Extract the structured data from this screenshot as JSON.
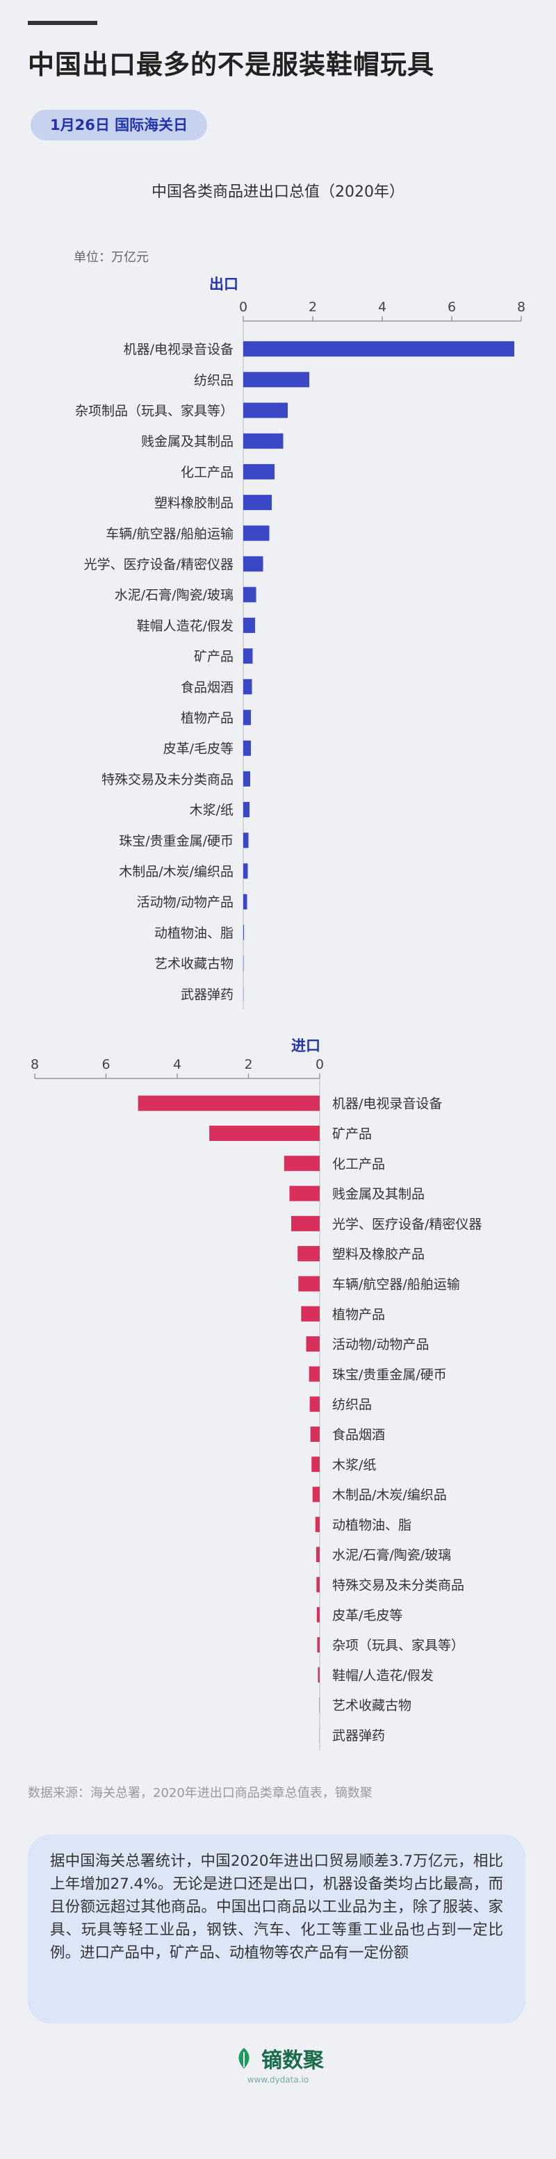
{
  "page": {
    "title": "中国出口最多的不是服装鞋帽玩具",
    "date_badge": "1月26日 国际海关日",
    "chart_title": "中国各类商品进出口总值（2020年）",
    "unit": "单位：万亿元",
    "source": "数据来源：海关总署，2020年进出口商品类章总值表，镝数聚",
    "summary": "据中国海关总署统计，中国2020年进出口贸易顺差3.7万亿元，相比上年增加27.4%。无论是进口还是出口，机器设备类均占比最高，而且份额远超过其他商品。中国出口商品以工业品为主，除了服装、家具、玩具等轻工业品，钢铁、汽车、化工等重工业品也占到一定比例。进口产品中，矿产品、动植物等农产品有一定份额",
    "brand_name": "镝数聚",
    "brand_url": "www.dydata.io"
  },
  "colors": {
    "export_bar": "#3a48c6",
    "import_bar": "#d82f5c",
    "brand": "#1b6b4a"
  },
  "chart_data": [
    {
      "type": "bar",
      "orientation": "horizontal",
      "title": "出口",
      "xlim": [
        0,
        8
      ],
      "ticks": [
        0,
        2,
        4,
        6,
        8
      ],
      "categories": [
        "机器/电视录音设备",
        "纺织品",
        "杂项制品（玩具、家具等）",
        "贱金属及其制品",
        "化工产品",
        "塑料橡胶制品",
        "车辆/航空器/船舶运输",
        "光学、医疗设备/精密仪器",
        "水泥/石膏/陶瓷/玻璃",
        "鞋帽人造花/假发",
        "矿产品",
        "食品烟酒",
        "植物产品",
        "皮革/毛皮等",
        "特殊交易及未分类商品",
        "木浆/纸",
        "珠宝/贵重金属/硬币",
        "木制品/木炭/编织品",
        "活动物/动物产品",
        "动植物油、脂",
        "艺术收藏古物",
        "武器弹药"
      ],
      "values": [
        7.8,
        1.9,
        1.28,
        1.15,
        0.9,
        0.82,
        0.75,
        0.57,
        0.37,
        0.34,
        0.27,
        0.25,
        0.22,
        0.22,
        0.2,
        0.18,
        0.15,
        0.13,
        0.11,
        0.02,
        0.01,
        0.005
      ]
    },
    {
      "type": "bar",
      "orientation": "horizontal",
      "title": "进口",
      "xlim": [
        0,
        8
      ],
      "ticks": [
        8,
        6,
        4,
        2,
        0
      ],
      "reversed": true,
      "categories": [
        "机器/电视录音设备",
        "矿产品",
        "化工产品",
        "贱金属及其制品",
        "光学、医疗设备/精密仪器",
        "塑料及橡胶产品",
        "车辆/航空器/船舶运输",
        "植物产品",
        "活动物/动物产品",
        "珠宝/贵重金属/硬币",
        "纺织品",
        "食品烟酒",
        "木浆/纸",
        "木制品/木炭/编织品",
        "动植物油、脂",
        "水泥/石膏/陶瓷/玻璃",
        "特殊交易及未分类商品",
        "皮革/毛皮等",
        "杂项（玩具、家具等）",
        "鞋帽/人造花/假发",
        "艺术收藏古物",
        "武器弹药"
      ],
      "values": [
        5.1,
        3.1,
        1.0,
        0.85,
        0.8,
        0.62,
        0.6,
        0.52,
        0.38,
        0.3,
        0.28,
        0.26,
        0.23,
        0.2,
        0.12,
        0.1,
        0.09,
        0.08,
        0.07,
        0.05,
        0.01,
        0.005
      ]
    }
  ]
}
